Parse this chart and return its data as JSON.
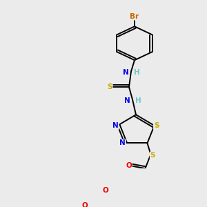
{
  "bg_color": "#ebebeb",
  "atom_colors": {
    "C": "#000000",
    "H": "#70c8c8",
    "N": "#0000ee",
    "O": "#ee0000",
    "S": "#ccaa00",
    "Br": "#cc6600"
  },
  "bond_color": "#000000",
  "bw": 1.4,
  "fontsize": 7.5
}
